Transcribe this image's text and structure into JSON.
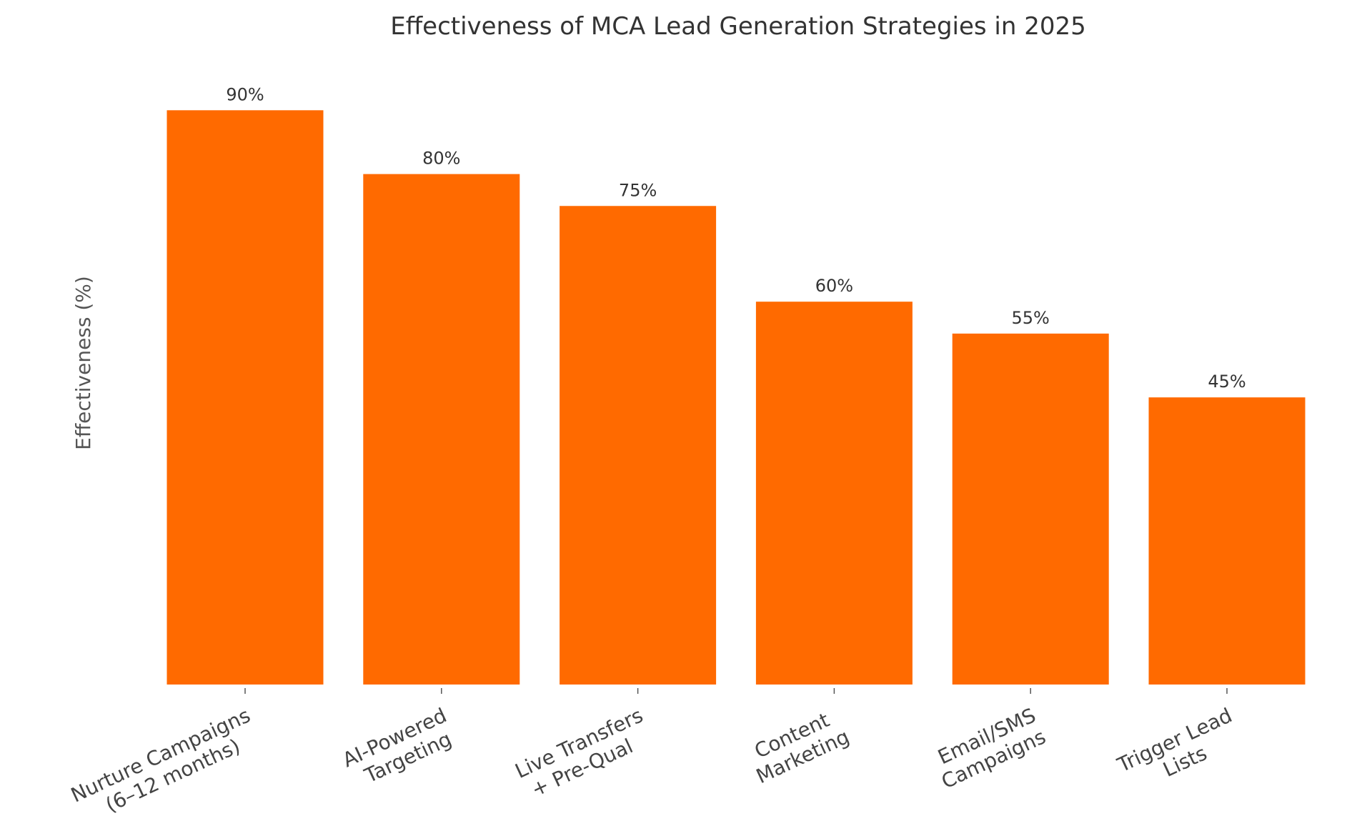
{
  "chart_data": {
    "type": "bar",
    "title": "Effectiveness of MCA Lead Generation Strategies in 2025",
    "xlabel": "",
    "ylabel": "Effectiveness (%)",
    "categories": [
      [
        "Nurture Campaigns",
        "(6–12 months)"
      ],
      [
        "AI-Powered",
        "Targeting"
      ],
      [
        "Live Transfers",
        "+ Pre-Qual"
      ],
      [
        "Content",
        "Marketing"
      ],
      [
        "Email/SMS",
        "Campaigns"
      ],
      [
        "Trigger Lead",
        "Lists"
      ]
    ],
    "values": [
      90,
      80,
      75,
      60,
      55,
      45
    ],
    "data_labels": [
      "90%",
      "80%",
      "75%",
      "60%",
      "55%",
      "45%"
    ],
    "ylim": [
      0,
      100
    ],
    "grid": false,
    "y_ticks_visible": false,
    "bar_color": "#ff6a00",
    "text_color": "#444444"
  }
}
